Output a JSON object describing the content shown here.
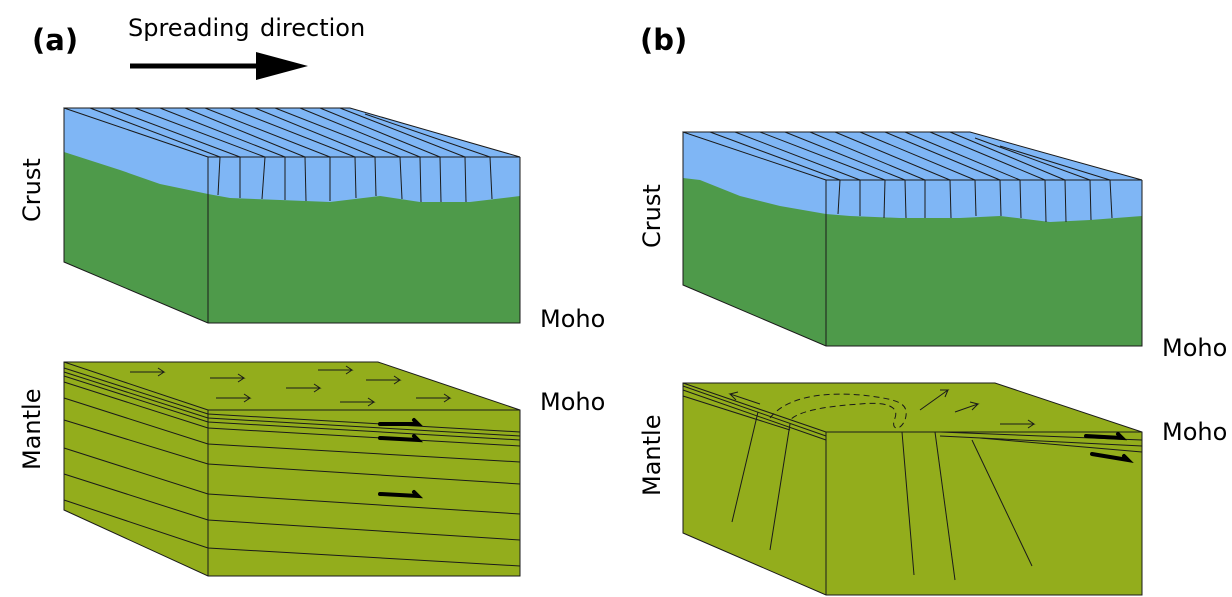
{
  "panels": [
    {
      "id": "a",
      "label": "(a)"
    },
    {
      "id": "b",
      "label": "(b)"
    }
  ],
  "spreading_label_1": "Spreading",
  "spreading_label_2": "direction",
  "labels": {
    "crust": "Crust",
    "mantle": "Mantle",
    "moho": "Moho"
  },
  "colors": {
    "crust_top": "#7fb6f5",
    "crust_body": "#4e9a4a",
    "mantle": "#93ad1c",
    "line": "#1a1a1a"
  }
}
